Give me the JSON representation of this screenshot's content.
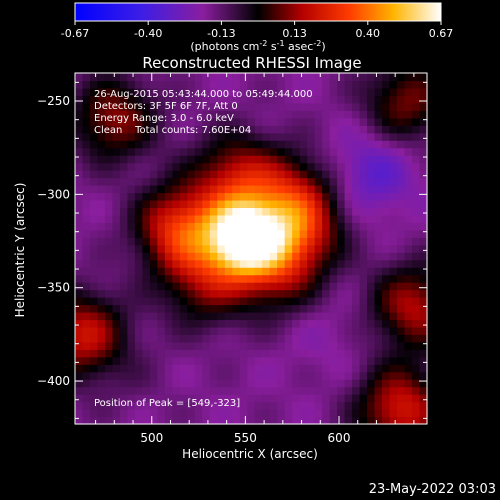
{
  "colorbar": {
    "ticks": [
      "-0.67",
      "-0.40",
      "-0.13",
      "0.13",
      "0.40",
      "0.67"
    ],
    "units_prefix": "(photons cm",
    "units_exp1": "-2",
    "units_mid": " s",
    "units_exp2": "-1",
    "units_mid2": " asec",
    "units_exp3": "-2",
    "units_suffix": ")"
  },
  "info": {
    "line1": "26-Aug-2015 05:43:44.000 to 05:49:44.000",
    "line2": "Detectors: 3F 5F 6F 7F, Att 0",
    "line3": "Energy Range: 3.0 - 6.0 keV",
    "line4": "Clean    Total counts: 7.60E+04",
    "peak": "Position of Peak = [549,-323]"
  },
  "timestamp": "23-May-2022 03:03",
  "chart_data": {
    "type": "heatmap",
    "title": "Reconstructed RHESSI Image",
    "xlabel": "Heliocentric X (arcsec)",
    "ylabel": "Heliocentric Y (arcsec)",
    "xlim": [
      459,
      647
    ],
    "ylim": [
      -423,
      -235
    ],
    "xticks": [
      500,
      550,
      600
    ],
    "yticks": [
      -250,
      -300,
      -350,
      -400
    ],
    "colorscale_range": [
      -0.67,
      0.67
    ],
    "sources": [
      {
        "x": 549,
        "y": -323,
        "value": 0.67
      },
      {
        "x": 515,
        "y": -318,
        "value": 0.28
      },
      {
        "x": 578,
        "y": -320,
        "value": 0.18
      },
      {
        "x": 545,
        "y": -290,
        "value": 0.15
      },
      {
        "x": 575,
        "y": -300,
        "value": 0.1
      },
      {
        "x": 528,
        "y": -348,
        "value": 0.08
      },
      {
        "x": 566,
        "y": -342,
        "value": 0.08
      },
      {
        "x": 480,
        "y": -260,
        "value": 0.14
      },
      {
        "x": 463,
        "y": -375,
        "value": 0.2
      },
      {
        "x": 633,
        "y": -415,
        "value": 0.22
      },
      {
        "x": 640,
        "y": -360,
        "value": 0.16
      },
      {
        "x": 636,
        "y": -250,
        "value": 0.1
      },
      {
        "x": 618,
        "y": -288,
        "value": -0.34
      },
      {
        "x": 595,
        "y": -375,
        "value": -0.22
      },
      {
        "x": 485,
        "y": -272,
        "value": -0.2
      },
      {
        "x": 490,
        "y": -400,
        "value": -0.15
      }
    ]
  }
}
